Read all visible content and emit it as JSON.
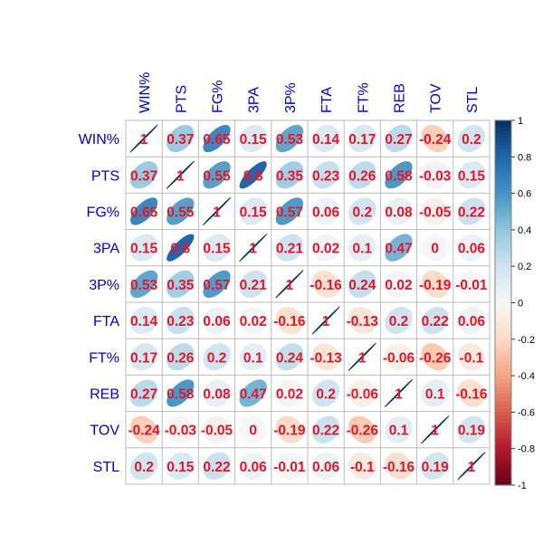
{
  "chart_data": {
    "type": "heatmap",
    "variables": [
      "WIN%",
      "PTS",
      "FG%",
      "3PA",
      "3P%",
      "FTA",
      "FT%",
      "REB",
      "TOV",
      "STL"
    ],
    "matrix": [
      [
        1,
        0.37,
        0.65,
        0.15,
        0.53,
        0.14,
        0.17,
        0.27,
        -0.24,
        0.2
      ],
      [
        0.37,
        1,
        0.55,
        0.8,
        0.35,
        0.23,
        0.26,
        0.58,
        -0.03,
        0.15
      ],
      [
        0.65,
        0.55,
        1,
        0.15,
        0.57,
        0.06,
        0.2,
        0.08,
        -0.05,
        0.22
      ],
      [
        0.15,
        0.8,
        0.15,
        1,
        0.21,
        0.02,
        0.1,
        0.47,
        0,
        0.06
      ],
      [
        0.53,
        0.35,
        0.57,
        0.21,
        1,
        -0.16,
        0.24,
        0.02,
        -0.19,
        -0.01
      ],
      [
        0.14,
        0.23,
        0.06,
        0.02,
        -0.16,
        1,
        -0.13,
        0.2,
        0.22,
        0.06
      ],
      [
        0.17,
        0.26,
        0.2,
        0.1,
        0.24,
        -0.13,
        1,
        -0.06,
        -0.26,
        -0.1
      ],
      [
        0.27,
        0.58,
        0.08,
        0.47,
        0.02,
        0.2,
        -0.06,
        1,
        0.1,
        -0.16
      ],
      [
        -0.24,
        -0.03,
        -0.05,
        0,
        -0.19,
        0.22,
        -0.26,
        0.1,
        1,
        0.19
      ],
      [
        0.2,
        0.15,
        0.22,
        0.06,
        -0.01,
        0.06,
        -0.1,
        -0.16,
        0.19,
        1
      ]
    ],
    "colorbar": {
      "ticks": [
        "1",
        "0.8",
        "0.6",
        "0.4",
        "0.2",
        "0",
        "-0.2",
        "-0.4",
        "-0.6",
        "-0.8",
        "-1"
      ],
      "range": [
        -1,
        1
      ]
    },
    "colors": {
      "label": "#0000cc",
      "value": "#e8142a",
      "grid": "#bdbdbd",
      "border": "#808080"
    }
  }
}
